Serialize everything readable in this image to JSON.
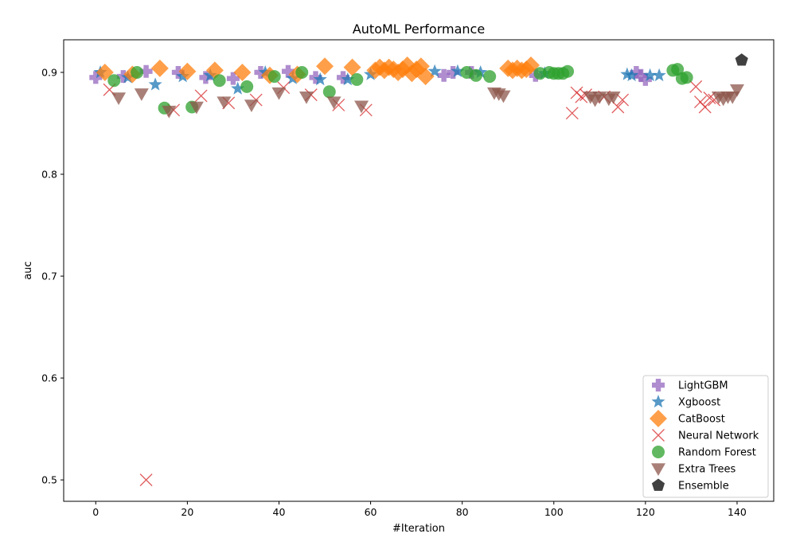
{
  "chart_data": {
    "type": "scatter",
    "title": "AutoML Performance",
    "xlabel": "#Iteration",
    "ylabel": "auc",
    "xlim": [
      -7,
      148
    ],
    "ylim": [
      0.479,
      0.932
    ],
    "xticks": [
      0,
      20,
      40,
      60,
      80,
      100,
      120,
      140
    ],
    "yticks": [
      0.5,
      0.6,
      0.7,
      0.8,
      0.9
    ],
    "grid": false,
    "legend_position": "bottom-right",
    "series": [
      {
        "name": "LightGBM",
        "marker": "plus",
        "color": "#9467bd",
        "points": [
          [
            0,
            0.895
          ],
          [
            6,
            0.896
          ],
          [
            11,
            0.901
          ],
          [
            18,
            0.9
          ],
          [
            24,
            0.895
          ],
          [
            30,
            0.894
          ],
          [
            36,
            0.9
          ],
          [
            42,
            0.901
          ],
          [
            48,
            0.895
          ],
          [
            54,
            0.895
          ],
          [
            76,
            0.897
          ],
          [
            78,
            0.9
          ],
          [
            82,
            0.9
          ],
          [
            96,
            0.897
          ],
          [
            118,
            0.9
          ],
          [
            119,
            0.897
          ],
          [
            120,
            0.893
          ]
        ]
      },
      {
        "name": "Xgboost",
        "marker": "star",
        "color": "#1f77b4",
        "points": [
          [
            1,
            0.9
          ],
          [
            7,
            0.895
          ],
          [
            13,
            0.888
          ],
          [
            19,
            0.896
          ],
          [
            25,
            0.897
          ],
          [
            31,
            0.884
          ],
          [
            37,
            0.9
          ],
          [
            43,
            0.894
          ],
          [
            49,
            0.893
          ],
          [
            55,
            0.893
          ],
          [
            60,
            0.898
          ],
          [
            74,
            0.901
          ],
          [
            79,
            0.901
          ],
          [
            84,
            0.9
          ],
          [
            98,
            0.899
          ],
          [
            116,
            0.898
          ],
          [
            117,
            0.897
          ],
          [
            121,
            0.897
          ],
          [
            123,
            0.897
          ]
        ]
      },
      {
        "name": "CatBoost",
        "marker": "diamond",
        "color": "#ff7f0e",
        "points": [
          [
            2,
            0.9
          ],
          [
            8,
            0.898
          ],
          [
            14,
            0.904
          ],
          [
            20,
            0.901
          ],
          [
            26,
            0.902
          ],
          [
            32,
            0.9
          ],
          [
            38,
            0.897
          ],
          [
            44,
            0.898
          ],
          [
            50,
            0.906
          ],
          [
            56,
            0.905
          ],
          [
            61,
            0.902
          ],
          [
            62,
            0.905
          ],
          [
            63,
            0.902
          ],
          [
            64,
            0.905
          ],
          [
            65,
            0.903
          ],
          [
            66,
            0.9
          ],
          [
            67,
            0.903
          ],
          [
            68,
            0.907
          ],
          [
            69,
            0.899
          ],
          [
            70,
            0.903
          ],
          [
            71,
            0.906
          ],
          [
            72,
            0.896
          ],
          [
            90,
            0.904
          ],
          [
            91,
            0.902
          ],
          [
            92,
            0.904
          ],
          [
            93,
            0.902
          ],
          [
            94,
            0.903
          ],
          [
            95,
            0.907
          ]
        ]
      },
      {
        "name": "Neural Network",
        "marker": "x",
        "color": "#d62728",
        "points": [
          [
            3,
            0.883
          ],
          [
            11,
            0.5
          ],
          [
            17,
            0.863
          ],
          [
            23,
            0.877
          ],
          [
            29,
            0.87
          ],
          [
            35,
            0.873
          ],
          [
            41,
            0.885
          ],
          [
            47,
            0.878
          ],
          [
            53,
            0.868
          ],
          [
            59,
            0.863
          ],
          [
            104,
            0.86
          ],
          [
            105,
            0.88
          ],
          [
            106,
            0.876
          ],
          [
            107,
            0.878
          ],
          [
            111,
            0.876
          ],
          [
            114,
            0.866
          ],
          [
            115,
            0.873
          ],
          [
            131,
            0.886
          ],
          [
            132,
            0.871
          ],
          [
            133,
            0.866
          ],
          [
            134,
            0.875
          ],
          [
            135,
            0.873
          ]
        ]
      },
      {
        "name": "Random Forest",
        "marker": "circle",
        "color": "#2ca02c",
        "points": [
          [
            4,
            0.892
          ],
          [
            9,
            0.9
          ],
          [
            15,
            0.865
          ],
          [
            21,
            0.866
          ],
          [
            27,
            0.892
          ],
          [
            33,
            0.886
          ],
          [
            39,
            0.896
          ],
          [
            45,
            0.9
          ],
          [
            51,
            0.881
          ],
          [
            57,
            0.893
          ],
          [
            81,
            0.9
          ],
          [
            83,
            0.897
          ],
          [
            86,
            0.896
          ],
          [
            97,
            0.899
          ],
          [
            99,
            0.9
          ],
          [
            100,
            0.899
          ],
          [
            101,
            0.899
          ],
          [
            102,
            0.899
          ],
          [
            103,
            0.901
          ],
          [
            126,
            0.902
          ],
          [
            127,
            0.903
          ],
          [
            128,
            0.894
          ],
          [
            129,
            0.895
          ]
        ]
      },
      {
        "name": "Extra Trees",
        "marker": "triangle-down",
        "color": "#8c564b",
        "points": [
          [
            5,
            0.875
          ],
          [
            10,
            0.879
          ],
          [
            16,
            0.862
          ],
          [
            22,
            0.866
          ],
          [
            28,
            0.871
          ],
          [
            34,
            0.868
          ],
          [
            40,
            0.88
          ],
          [
            46,
            0.876
          ],
          [
            52,
            0.871
          ],
          [
            58,
            0.867
          ],
          [
            87,
            0.88
          ],
          [
            88,
            0.879
          ],
          [
            89,
            0.877
          ],
          [
            108,
            0.876
          ],
          [
            109,
            0.873
          ],
          [
            110,
            0.876
          ],
          [
            112,
            0.874
          ],
          [
            113,
            0.876
          ],
          [
            136,
            0.876
          ],
          [
            137,
            0.874
          ],
          [
            138,
            0.876
          ],
          [
            139,
            0.876
          ],
          [
            140,
            0.883
          ]
        ]
      },
      {
        "name": "Ensemble",
        "marker": "pentagon",
        "color": "#000000",
        "points": [
          [
            141,
            0.912
          ]
        ]
      }
    ]
  }
}
